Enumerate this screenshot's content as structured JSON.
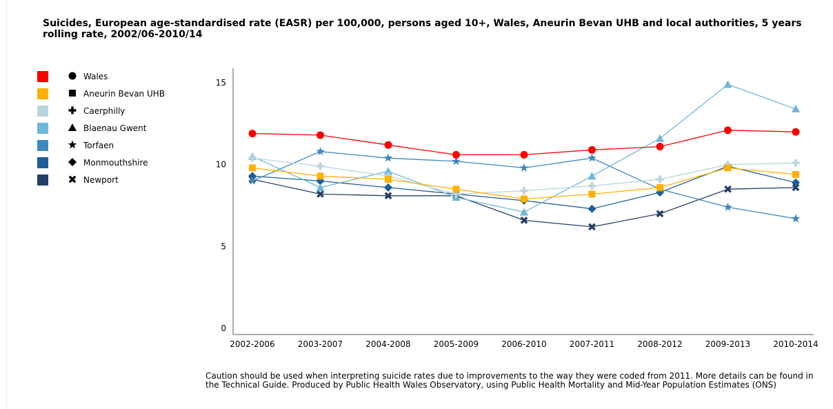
{
  "title": "Suicides, European age-standardised rate (EASR) per 100,000, persons aged 10+, Wales, Aneurin Bevan UHB and local authorities, 5 years rolling rate, 2002/06-2010/14",
  "caption": "Caution should be used when interpreting suicide rates due to improvements to the way they were coded from 2011.  More details can be found in the Technical Guide.  Produced by Public Health Wales Observatory, using Public Health Mortality and Mid-Year Population Estimates (ONS)",
  "chart_data": {
    "type": "line",
    "title": "Suicides, European age-standardised rate (EASR) per 100,000, persons aged 10+, Wales, Aneurin Bevan UHB and local authorities, 5 years rolling rate, 2002/06-2010/14",
    "xlabel": "",
    "ylabel": "",
    "ylim": [
      0,
      15
    ],
    "yticks": [
      0,
      5,
      10,
      15
    ],
    "grid": false,
    "legend_position": "left",
    "categories": [
      "2002-2006",
      "2003-2007",
      "2004-2008",
      "2005-2009",
      "2006-2010",
      "2007-2011",
      "2008-2012",
      "2009-2013",
      "2010-2014"
    ],
    "series": [
      {
        "name": "Wales",
        "color": "#ff0000",
        "marker": "circle",
        "values": [
          11.9,
          11.8,
          11.2,
          10.6,
          10.6,
          10.9,
          11.1,
          12.1,
          12.0
        ]
      },
      {
        "name": "Aneurin Bevan UHB",
        "color": "#ffb000",
        "marker": "square",
        "values": [
          9.8,
          9.3,
          9.1,
          8.5,
          7.9,
          8.2,
          8.6,
          9.8,
          9.4
        ]
      },
      {
        "name": "Caerphilly",
        "color": "#b8d4dc",
        "marker": "plus",
        "values": [
          10.4,
          9.9,
          9.3,
          8.2,
          8.4,
          8.7,
          9.1,
          10.0,
          10.1
        ]
      },
      {
        "name": "Blaenau Gwent",
        "color": "#6fb6d9",
        "marker": "triangle",
        "values": [
          10.5,
          8.6,
          9.6,
          8.0,
          7.1,
          9.3,
          11.6,
          14.9,
          13.4
        ]
      },
      {
        "name": "Torfaen",
        "color": "#3d88bd",
        "marker": "star",
        "values": [
          9.0,
          10.8,
          10.4,
          10.2,
          9.8,
          10.4,
          8.5,
          7.4,
          6.7
        ]
      },
      {
        "name": "Monmouthshire",
        "color": "#1f5c99",
        "marker": "diamond",
        "values": [
          9.3,
          9.0,
          8.6,
          8.2,
          7.8,
          7.3,
          8.3,
          9.9,
          8.9
        ]
      },
      {
        "name": "Newport",
        "color": "#243f66",
        "marker": "cross",
        "values": [
          9.1,
          8.2,
          8.1,
          8.1,
          6.6,
          6.2,
          7.0,
          8.5,
          8.6
        ]
      }
    ]
  }
}
